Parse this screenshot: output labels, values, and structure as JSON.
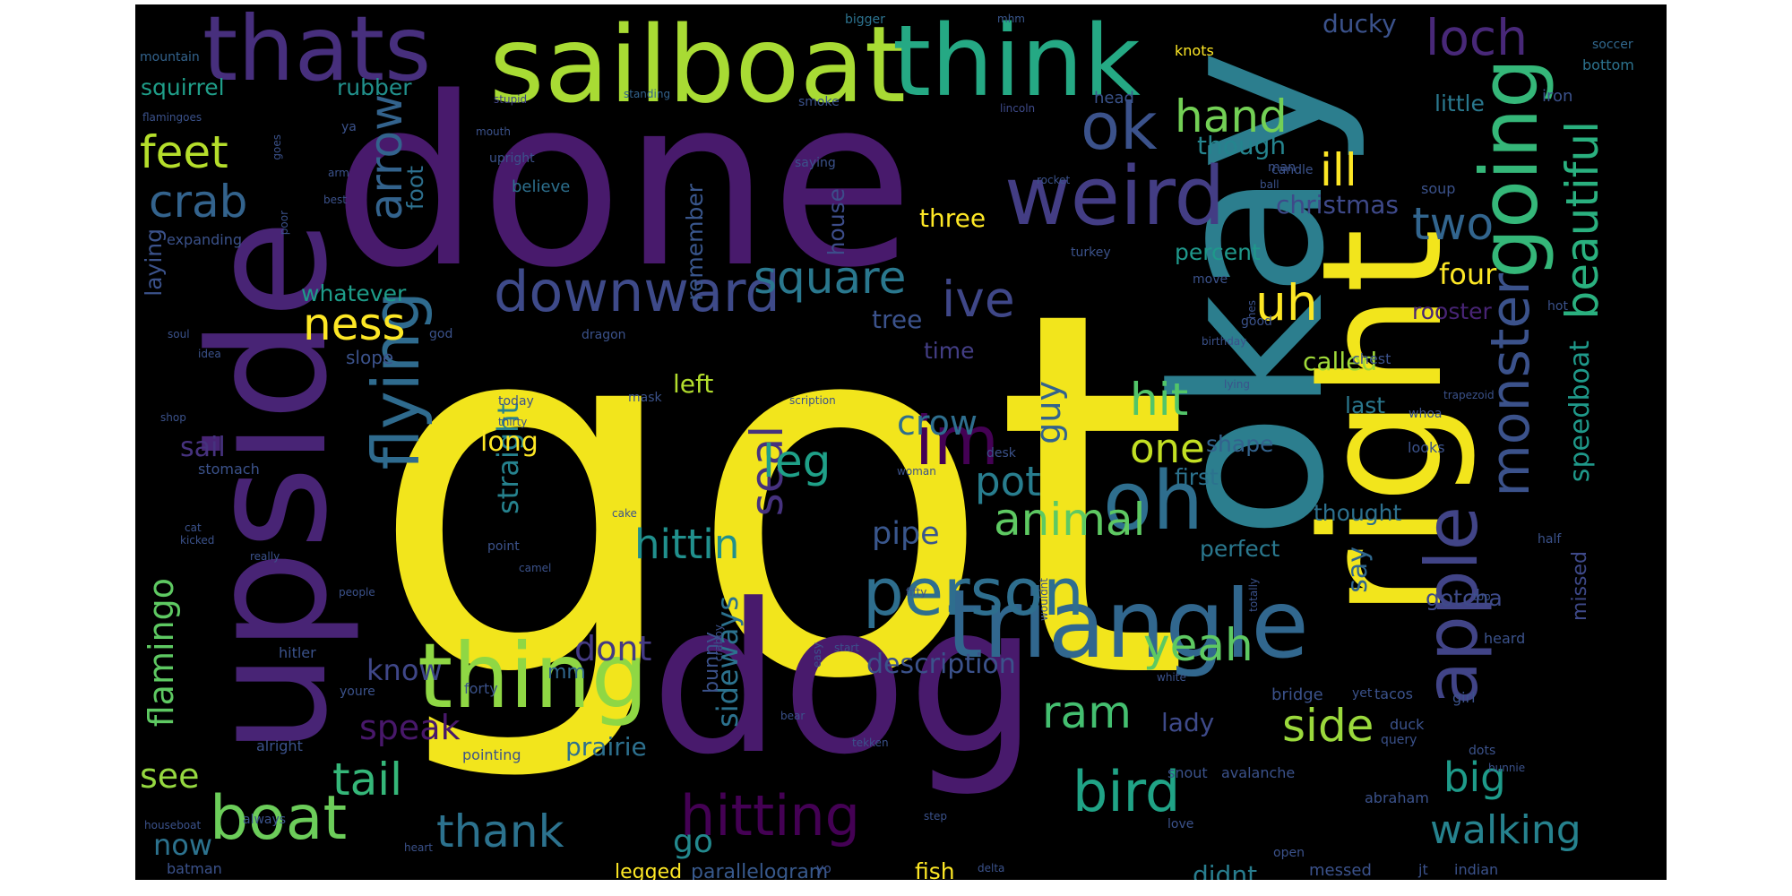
{
  "words": [
    {
      "text": "got",
      "color": "#f2e51c"
    },
    {
      "text": "done",
      "color": "#481a6c"
    },
    {
      "text": "okay",
      "color": "#2c7e8e"
    },
    {
      "text": "dog",
      "color": "#481a6c"
    },
    {
      "text": "upside",
      "color": "#482475"
    },
    {
      "text": "right",
      "color": "#f2e51c"
    },
    {
      "text": "sailboat",
      "color": "#a8db34"
    },
    {
      "text": "think",
      "color": "#25a984"
    },
    {
      "text": "thats",
      "color": "#472f7d"
    },
    {
      "text": "triangle",
      "color": "#31678e"
    },
    {
      "text": "thing",
      "color": "#8fd744"
    },
    {
      "text": "weird",
      "color": "#433d84"
    },
    {
      "text": "going",
      "color": "#35b779"
    },
    {
      "text": "apple",
      "color": "#414487"
    },
    {
      "text": "oh",
      "color": "#2e6e8e"
    },
    {
      "text": "person",
      "color": "#2e6e8e"
    },
    {
      "text": "flying",
      "color": "#2f6b8e"
    },
    {
      "text": "ok",
      "color": "#3b528b"
    },
    {
      "text": "boat",
      "color": "#6ccd5a"
    },
    {
      "text": "im",
      "color": "#440154"
    },
    {
      "text": "hitting",
      "color": "#440154"
    },
    {
      "text": "bird",
      "color": "#20a386"
    },
    {
      "text": "downward",
      "color": "#3e4a89"
    },
    {
      "text": "monster",
      "color": "#3b528b"
    },
    {
      "text": "beautiful",
      "color": "#2ab07f"
    },
    {
      "text": "loch",
      "color": "#482878"
    },
    {
      "text": "feet",
      "color": "#b5de2b"
    },
    {
      "text": "crab",
      "color": "#33638d"
    },
    {
      "text": "arrow",
      "color": "#33638d"
    },
    {
      "text": "hand",
      "color": "#73d055"
    },
    {
      "text": "square",
      "color": "#2a788e"
    },
    {
      "text": "ive",
      "color": "#3f4788"
    },
    {
      "text": "uh",
      "color": "#fde725"
    },
    {
      "text": "two",
      "color": "#32658e"
    },
    {
      "text": "ill",
      "color": "#fde725"
    },
    {
      "text": "ness",
      "color": "#fde725"
    },
    {
      "text": "seal",
      "color": "#46327e"
    },
    {
      "text": "leg",
      "color": "#1fa088"
    },
    {
      "text": "animal",
      "color": "#5ec962"
    },
    {
      "text": "hit",
      "color": "#52c569"
    },
    {
      "text": "one",
      "color": "#c2df23"
    },
    {
      "text": "pot",
      "color": "#287d8e"
    },
    {
      "text": "yeah",
      "color": "#5ec962"
    },
    {
      "text": "side",
      "color": "#9bd93c"
    },
    {
      "text": "walking",
      "color": "#26828e"
    },
    {
      "text": "big",
      "color": "#1e9b8a"
    },
    {
      "text": "thank",
      "color": "#2c728e"
    },
    {
      "text": "tail",
      "color": "#35b779"
    },
    {
      "text": "ram",
      "color": "#44bf70"
    },
    {
      "text": "hittin",
      "color": "#21908d"
    },
    {
      "text": "flamingo",
      "color": "#5ec962"
    },
    {
      "text": "straight",
      "color": "#26828e"
    },
    {
      "text": "sideways",
      "color": "#2c728e"
    },
    {
      "text": "description",
      "color": "#3b528b"
    },
    {
      "text": "speedboat",
      "color": "#1f998a"
    },
    {
      "text": "crow",
      "color": "#2e6e8e"
    },
    {
      "text": "pipe",
      "color": "#39568c"
    },
    {
      "text": "guy",
      "color": "#33638d"
    },
    {
      "text": "speak",
      "color": "#48186a"
    },
    {
      "text": "dont",
      "color": "#443a83"
    },
    {
      "text": "know",
      "color": "#3f4788"
    },
    {
      "text": "see",
      "color": "#95d840"
    },
    {
      "text": "now",
      "color": "#2c728e"
    },
    {
      "text": "go",
      "color": "#23898e"
    },
    {
      "text": "squirrel",
      "color": "#1f9e89"
    },
    {
      "text": "rubber",
      "color": "#21918c"
    },
    {
      "text": "little",
      "color": "#2a788e"
    },
    {
      "text": "ducky",
      "color": "#3b528b"
    },
    {
      "text": "though",
      "color": "#25848e"
    },
    {
      "text": "christmas",
      "color": "#3e4989"
    },
    {
      "text": "three",
      "color": "#fde725"
    },
    {
      "text": "percent",
      "color": "#1f988b"
    },
    {
      "text": "four",
      "color": "#fde725"
    },
    {
      "text": "rooster",
      "color": "#482475"
    },
    {
      "text": "whatever",
      "color": "#1e9c89"
    },
    {
      "text": "tree",
      "color": "#3b528b"
    },
    {
      "text": "time",
      "color": "#433e85"
    },
    {
      "text": "left",
      "color": "#b2dd2d"
    },
    {
      "text": "remember",
      "color": "#39568c"
    },
    {
      "text": "house",
      "color": "#3d4d8a"
    },
    {
      "text": "foot",
      "color": "#2d708e"
    },
    {
      "text": "laying",
      "color": "#3b528b"
    },
    {
      "text": "sail",
      "color": "#46327e"
    },
    {
      "text": "long",
      "color": "#fde725"
    },
    {
      "text": "called",
      "color": "#a0da39"
    },
    {
      "text": "last",
      "color": "#2a788e"
    },
    {
      "text": "first",
      "color": "#2c728e"
    },
    {
      "text": "shape",
      "color": "#33638d"
    },
    {
      "text": "thought",
      "color": "#2d708e"
    },
    {
      "text": "perfect",
      "color": "#2a788e"
    },
    {
      "text": "say",
      "color": "#31688e"
    },
    {
      "text": "gotcha",
      "color": "#3e4a89"
    },
    {
      "text": "missed",
      "color": "#3e4989"
    },
    {
      "text": "lady",
      "color": "#3e4a89"
    },
    {
      "text": "bunny",
      "color": "#3b528b"
    },
    {
      "text": "prairie",
      "color": "#2d708e"
    },
    {
      "text": "mm",
      "color": "#31688e"
    },
    {
      "text": "fish",
      "color": "#fde725"
    },
    {
      "text": "didnt",
      "color": "#287d8e"
    },
    {
      "text": "legged",
      "color": "#fde725"
    },
    {
      "text": "parallelogram",
      "color": "#38598c"
    },
    {
      "text": "believe",
      "color": "#2d708e"
    },
    {
      "text": "upright",
      "color": "#3b528b"
    },
    {
      "text": "head",
      "color": "#3a538b"
    },
    {
      "text": "iron",
      "color": "#3b528b"
    },
    {
      "text": "bottom",
      "color": "#2c728e"
    },
    {
      "text": "soccer",
      "color": "#31688e"
    },
    {
      "text": "bigger",
      "color": "#2c728e"
    },
    {
      "text": "mhm",
      "color": "#39568c"
    },
    {
      "text": "knots",
      "color": "#fde725"
    },
    {
      "text": "mountain",
      "color": "#33638d"
    },
    {
      "text": "stupid",
      "color": "#414487"
    },
    {
      "text": "standing",
      "color": "#33638d"
    },
    {
      "text": "smoke",
      "color": "#3b528b"
    },
    {
      "text": "lincoln",
      "color": "#3e4a89"
    },
    {
      "text": "flamingoes",
      "color": "#3b528b"
    },
    {
      "text": "ya",
      "color": "#3b528b"
    },
    {
      "text": "mouth",
      "color": "#3b528b"
    },
    {
      "text": "arm",
      "color": "#3b528b"
    },
    {
      "text": "goes",
      "color": "#3b528b"
    },
    {
      "text": "best",
      "color": "#3b528b"
    },
    {
      "text": "poor",
      "color": "#3b528b"
    },
    {
      "text": "saying",
      "color": "#3b528b"
    },
    {
      "text": "man",
      "color": "#3b528b"
    },
    {
      "text": "rocket",
      "color": "#3b528b"
    },
    {
      "text": "ball",
      "color": "#3b528b"
    },
    {
      "text": "candle",
      "color": "#3b528b"
    },
    {
      "text": "soup",
      "color": "#3b528b"
    },
    {
      "text": "expanding",
      "color": "#3b528b"
    },
    {
      "text": "turkey",
      "color": "#3b528b"
    },
    {
      "text": "move",
      "color": "#3b528b"
    },
    {
      "text": "god",
      "color": "#3b528b"
    },
    {
      "text": "hes",
      "color": "#3b528b"
    },
    {
      "text": "good",
      "color": "#3b528b"
    },
    {
      "text": "birthday",
      "color": "#3b528b"
    },
    {
      "text": "hot",
      "color": "#3b528b"
    },
    {
      "text": "soul",
      "color": "#3b528b"
    },
    {
      "text": "idea",
      "color": "#3b528b"
    },
    {
      "text": "slope",
      "color": "#3b528b"
    },
    {
      "text": "dragon",
      "color": "#3b528b"
    },
    {
      "text": "chest",
      "color": "#3b528b"
    },
    {
      "text": "mask",
      "color": "#3b528b"
    },
    {
      "text": "today",
      "color": "#3b528b"
    },
    {
      "text": "scription",
      "color": "#3b528b"
    },
    {
      "text": "lying",
      "color": "#3b528b"
    },
    {
      "text": "shop",
      "color": "#3b528b"
    },
    {
      "text": "thirty",
      "color": "#3b528b"
    },
    {
      "text": "whoa",
      "color": "#3b528b"
    },
    {
      "text": "trapezoid",
      "color": "#3b528b"
    },
    {
      "text": "stomach",
      "color": "#3b528b"
    },
    {
      "text": "desk",
      "color": "#3b528b"
    },
    {
      "text": "looks",
      "color": "#3b528b"
    },
    {
      "text": "woman",
      "color": "#3b528b"
    },
    {
      "text": "cake",
      "color": "#3b528b"
    },
    {
      "text": "cat",
      "color": "#3b528b"
    },
    {
      "text": "kicked",
      "color": "#3b528b"
    },
    {
      "text": "point",
      "color": "#3b528b"
    },
    {
      "text": "camel",
      "color": "#3b528b"
    },
    {
      "text": "really",
      "color": "#3b528b"
    },
    {
      "text": "people",
      "color": "#3b528b"
    },
    {
      "text": "wouldnt",
      "color": "#3b528b"
    },
    {
      "text": "fifty",
      "color": "#3b528b"
    },
    {
      "text": "totally",
      "color": "#3b528b"
    },
    {
      "text": "top",
      "color": "#3b528b"
    },
    {
      "text": "half",
      "color": "#3b528b"
    },
    {
      "text": "hitler",
      "color": "#3b528b"
    },
    {
      "text": "forty",
      "color": "#3b528b"
    },
    {
      "text": "crabby",
      "color": "#3b528b"
    },
    {
      "text": "easy",
      "color": "#3b528b"
    },
    {
      "text": "start",
      "color": "#3b528b"
    },
    {
      "text": "white",
      "color": "#3b528b"
    },
    {
      "text": "heard",
      "color": "#3b528b"
    },
    {
      "text": "youre",
      "color": "#3b528b"
    },
    {
      "text": "alright",
      "color": "#3b528b"
    },
    {
      "text": "pointing",
      "color": "#3b528b"
    },
    {
      "text": "tekken",
      "color": "#3b528b"
    },
    {
      "text": "bridge",
      "color": "#3b528b"
    },
    {
      "text": "yet",
      "color": "#3b528b"
    },
    {
      "text": "tacos",
      "color": "#3b528b"
    },
    {
      "text": "girl",
      "color": "#3b528b"
    },
    {
      "text": "duck",
      "color": "#3b528b"
    },
    {
      "text": "query",
      "color": "#3b528b"
    },
    {
      "text": "bear",
      "color": "#3b528b"
    },
    {
      "text": "snout",
      "color": "#3b528b"
    },
    {
      "text": "avalanche",
      "color": "#3b528b"
    },
    {
      "text": "dots",
      "color": "#3b528b"
    },
    {
      "text": "bunnie",
      "color": "#3b528b"
    },
    {
      "text": "abraham",
      "color": "#3b528b"
    },
    {
      "text": "always",
      "color": "#3b528b"
    },
    {
      "text": "houseboat",
      "color": "#3b528b"
    },
    {
      "text": "step",
      "color": "#3b528b"
    },
    {
      "text": "love",
      "color": "#3b528b"
    },
    {
      "text": "heart",
      "color": "#3b528b"
    },
    {
      "text": "open",
      "color": "#3b528b"
    },
    {
      "text": "batman",
      "color": "#3b528b"
    },
    {
      "text": "yo",
      "color": "#3b528b"
    },
    {
      "text": "delta",
      "color": "#3b528b"
    },
    {
      "text": "messed",
      "color": "#3b528b"
    },
    {
      "text": "jt",
      "color": "#3b528b"
    },
    {
      "text": "indian",
      "color": "#3b528b"
    }
  ]
}
